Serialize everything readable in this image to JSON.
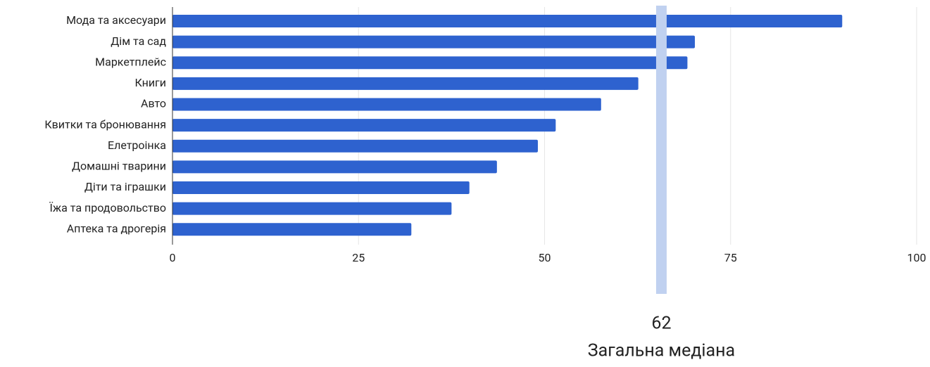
{
  "chart_data": {
    "type": "bar",
    "orientation": "horizontal",
    "categories": [
      "Мода та аксесуари",
      "Дім та сад",
      "Маркетплейс",
      "Книги",
      "Авто",
      "Квитки та бронювання",
      "Елетроінка",
      "Домашні тварини",
      "Діти та іграшки",
      "Їжа та продовольство",
      "Аптека та дрогерія"
    ],
    "values": [
      90,
      70.2,
      69.2,
      62.6,
      57.6,
      51.5,
      49.1,
      43.6,
      39.9,
      37.5,
      32.1
    ],
    "color": "#2e62cf",
    "xlim": [
      0,
      100
    ],
    "xticks": [
      0,
      25,
      50,
      75,
      100
    ],
    "grid": true,
    "median_band": {
      "value": 65.7,
      "color": "#c0d1f0"
    },
    "annotations": [
      "62",
      "Загальна медіана"
    ]
  }
}
